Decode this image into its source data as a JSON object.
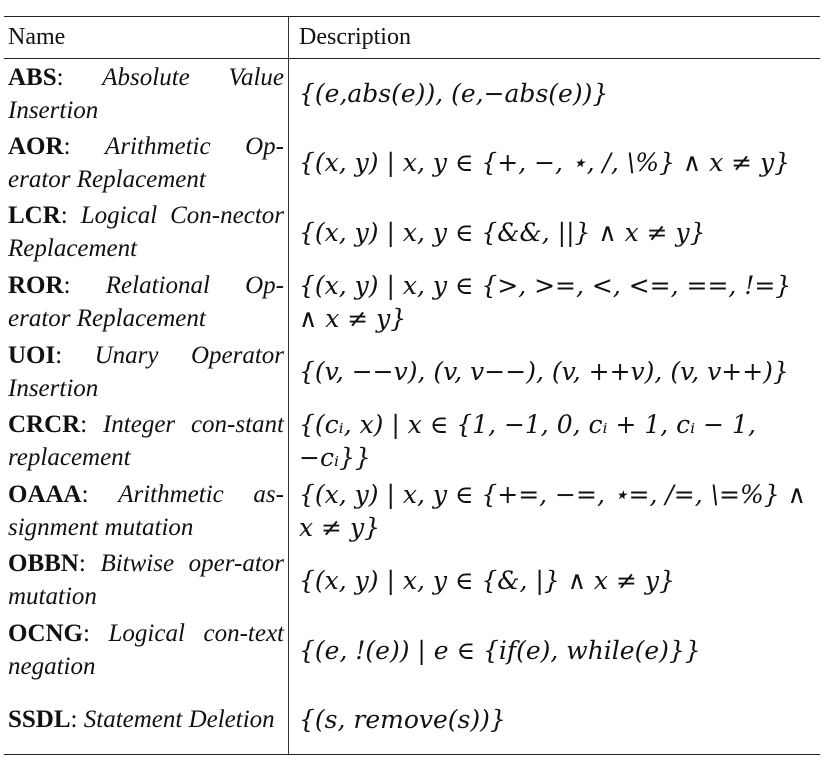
{
  "headers": {
    "name": "Name",
    "description": "Description"
  },
  "rows": [
    {
      "abbr": "ABS",
      "sep": ": ",
      "full": "Absolute Value Insertion",
      "description": "{(e,abs(e)), (e,−abs(e))}"
    },
    {
      "abbr": "AOR",
      "sep": ": ",
      "full": "Arithmetic Op-erator Replacement",
      "description": "{(x, y) | x, y ∈ {+, −, ⋆, /, \\%} ∧ x ≠ y}"
    },
    {
      "abbr": "LCR",
      "sep": ": ",
      "full": "Logical Con-nector Replacement",
      "description": "{(x, y) | x, y ∈ {&&, ||} ∧ x ≠ y}"
    },
    {
      "abbr": "ROR",
      "sep": ": ",
      "full": "Relational Op-erator Replacement",
      "description": "{(x, y) | x, y ∈ {>, >=, <, <=, ==, !=} ∧ x ≠ y}"
    },
    {
      "abbr": "UOI",
      "sep": ": ",
      "full": "Unary Operator Insertion",
      "description": "{(v, −−v), (v, v−−), (v, ++v), (v, v++)}"
    },
    {
      "abbr": "CRCR",
      "sep": ": ",
      "full": "Integer con-stant replacement",
      "description": "{(cᵢ, x) | x ∈ {1, −1, 0, cᵢ + 1, cᵢ − 1, −cᵢ}}"
    },
    {
      "abbr": "OAAA",
      "sep": ": ",
      "full": "Arithmetic as-signment mutation",
      "description": "{(x, y) | x, y ∈ {+=, −=, ⋆=, /=, \\=%} ∧ x ≠ y}"
    },
    {
      "abbr": "OBBN",
      "sep": ": ",
      "full": "Bitwise oper-ator mutation",
      "description": "{(x, y) | x, y ∈ {&, |} ∧ x ≠ y}"
    },
    {
      "abbr": "OCNG",
      "sep": ": ",
      "full": "Logical con-text negation",
      "description": "{(e, !(e)) | e ∈ {if(e), while(e)}}"
    },
    {
      "abbr": "SSDL",
      "sep": ": ",
      "full": "Statement Deletion",
      "description": "{(s, remove(s))}"
    }
  ]
}
